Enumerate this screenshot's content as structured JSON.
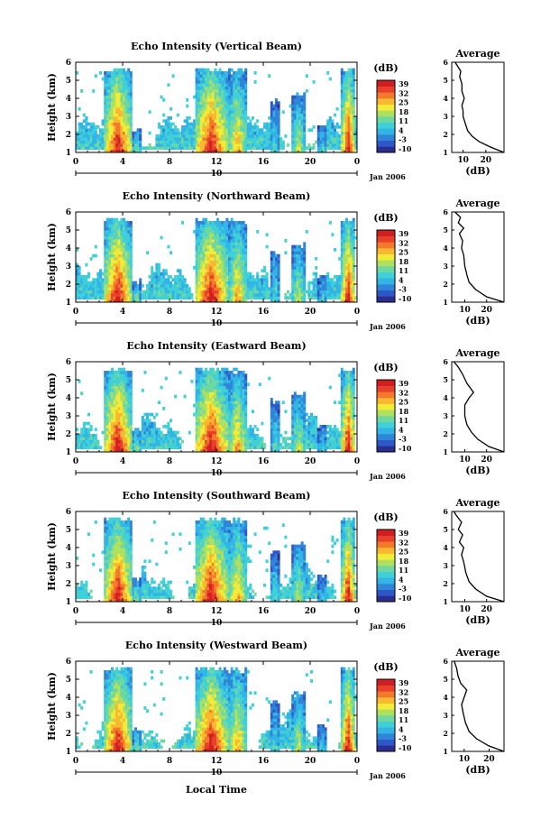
{
  "figure": {
    "xlabel": "Local Time",
    "date_label": "10",
    "month_label": "Jan 2006",
    "x_ticks": [
      "0",
      "4",
      "8",
      "12",
      "16",
      "20",
      "0"
    ],
    "colorbar_unit": "(dB)",
    "colorbar_ticks": [
      "39",
      "32",
      "25",
      "18",
      "11",
      "4",
      "-3",
      "-10"
    ],
    "colors": [
      "#2b2e8f",
      "#2e57c8",
      "#2f86d8",
      "#32b4e6",
      "#3fd0d8",
      "#6fd8a0",
      "#b0e060",
      "#f2ec38",
      "#f8b830",
      "#f37a2a",
      "#e8402a",
      "#d01e22"
    ]
  },
  "chart_data": [
    {
      "type": "heatmap",
      "title": "Echo Intensity (Vertical Beam)",
      "ylabel": "Height (km)",
      "x_range_hours": [
        0,
        24
      ],
      "ylim": [
        1,
        6
      ],
      "y_ticks": [
        "1",
        "2",
        "3",
        "4",
        "5",
        "6"
      ],
      "clim": [
        -10,
        39
      ],
      "profile": {
        "title": "Average",
        "xlabel": "(dB)",
        "x_ticks": [
          "10",
          "20"
        ],
        "xlim": [
          5,
          28
        ],
        "points": [
          [
            28,
            1.0
          ],
          [
            22,
            1.3
          ],
          [
            17,
            1.6
          ],
          [
            14,
            1.9
          ],
          [
            12,
            2.2
          ],
          [
            11,
            2.6
          ],
          [
            10,
            3.0
          ],
          [
            10,
            3.3
          ],
          [
            9.5,
            3.6
          ],
          [
            10.5,
            4.0
          ],
          [
            9.5,
            4.4
          ],
          [
            9.5,
            4.8
          ],
          [
            8.5,
            5.2
          ],
          [
            9.0,
            5.5
          ],
          [
            7.5,
            5.8
          ],
          [
            6.5,
            6.0
          ]
        ]
      }
    },
    {
      "type": "heatmap",
      "title": "Echo Intensity (Northward Beam)",
      "ylabel": "Height (km)",
      "x_range_hours": [
        0,
        24
      ],
      "ylim": [
        1,
        6
      ],
      "y_ticks": [
        "1",
        "2",
        "3",
        "4",
        "5",
        "6"
      ],
      "clim": [
        -10,
        39
      ],
      "profile": {
        "title": "Average",
        "xlabel": "(dB)",
        "x_ticks": [
          "10",
          "20"
        ],
        "xlim": [
          4,
          28
        ],
        "points": [
          [
            28,
            1.0
          ],
          [
            20,
            1.3
          ],
          [
            15,
            1.7
          ],
          [
            12,
            2.1
          ],
          [
            11,
            2.5
          ],
          [
            10,
            3.0
          ],
          [
            9.5,
            3.6
          ],
          [
            8.5,
            4.0
          ],
          [
            9.0,
            4.4
          ],
          [
            7.5,
            4.8
          ],
          [
            9.5,
            5.1
          ],
          [
            7.0,
            5.4
          ],
          [
            8.0,
            5.7
          ],
          [
            5.5,
            6.0
          ]
        ]
      }
    },
    {
      "type": "heatmap",
      "title": "Echo Intensity (Eastward Beam)",
      "ylabel": "Height (km)",
      "x_range_hours": [
        0,
        24
      ],
      "ylim": [
        1,
        6
      ],
      "y_ticks": [
        "1",
        "2",
        "3",
        "4",
        "5",
        "6"
      ],
      "clim": [
        -10,
        39
      ],
      "profile": {
        "title": "Average",
        "xlabel": "(dB)",
        "x_ticks": [
          "10",
          "20"
        ],
        "xlim": [
          4,
          28
        ],
        "points": [
          [
            28,
            1.0
          ],
          [
            21,
            1.3
          ],
          [
            16,
            1.7
          ],
          [
            13,
            2.1
          ],
          [
            11,
            2.5
          ],
          [
            10,
            3.0
          ],
          [
            10,
            3.6
          ],
          [
            12,
            4.0
          ],
          [
            14,
            4.3
          ],
          [
            11,
            4.8
          ],
          [
            9,
            5.3
          ],
          [
            7,
            5.7
          ],
          [
            5,
            6.0
          ]
        ]
      }
    },
    {
      "type": "heatmap",
      "title": "Echo Intensity (Southward Beam)",
      "ylabel": "Height (km)",
      "x_range_hours": [
        0,
        24
      ],
      "ylim": [
        1,
        6
      ],
      "y_ticks": [
        "1",
        "2",
        "3",
        "4",
        "5",
        "6"
      ],
      "clim": [
        -10,
        39
      ],
      "profile": {
        "title": "Average",
        "xlabel": "(dB)",
        "x_ticks": [
          "10",
          "20"
        ],
        "xlim": [
          4,
          28
        ],
        "points": [
          [
            28,
            1.0
          ],
          [
            20,
            1.3
          ],
          [
            15,
            1.7
          ],
          [
            12,
            2.1
          ],
          [
            10.5,
            2.6
          ],
          [
            9.5,
            3.2
          ],
          [
            8.5,
            3.6
          ],
          [
            9.5,
            4.0
          ],
          [
            7.5,
            4.3
          ],
          [
            9.0,
            4.7
          ],
          [
            7.0,
            5.0
          ],
          [
            8.5,
            5.4
          ],
          [
            6.0,
            5.8
          ],
          [
            5.0,
            6.0
          ]
        ]
      }
    },
    {
      "type": "heatmap",
      "title": "Echo Intensity (Westward Beam)",
      "ylabel": "Height (km)",
      "x_range_hours": [
        0,
        24
      ],
      "ylim": [
        1,
        6
      ],
      "y_ticks": [
        "1",
        "2",
        "3",
        "4",
        "5",
        "6"
      ],
      "clim": [
        -10,
        39
      ],
      "profile": {
        "title": "Average",
        "xlabel": "(dB)",
        "x_ticks": [
          "10",
          "20"
        ],
        "xlim": [
          5,
          26
        ],
        "points": [
          [
            26,
            1.0
          ],
          [
            20,
            1.3
          ],
          [
            15,
            1.7
          ],
          [
            12,
            2.1
          ],
          [
            10.5,
            2.6
          ],
          [
            9.5,
            3.2
          ],
          [
            9.0,
            3.6
          ],
          [
            10.0,
            4.0
          ],
          [
            11.0,
            4.4
          ],
          [
            8.5,
            4.8
          ],
          [
            7.5,
            5.2
          ],
          [
            7.0,
            5.6
          ],
          [
            6.0,
            6.0
          ]
        ]
      }
    }
  ]
}
